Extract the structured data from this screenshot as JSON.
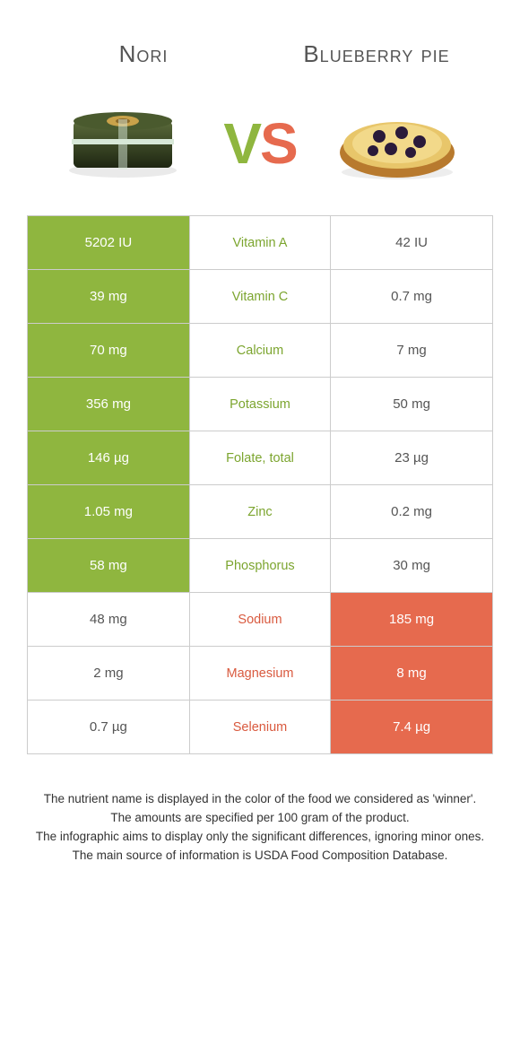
{
  "titles": {
    "left": "Nori",
    "right": "Blueberry pie"
  },
  "vs": {
    "v": "V",
    "s": "S"
  },
  "colors": {
    "left_win": "#8fb63f",
    "right_win": "#e66a4e"
  },
  "rows": [
    {
      "nutrient": "Vitamin A",
      "left": "5202 IU",
      "right": "42 IU",
      "winner": "left"
    },
    {
      "nutrient": "Vitamin C",
      "left": "39 mg",
      "right": "0.7 mg",
      "winner": "left"
    },
    {
      "nutrient": "Calcium",
      "left": "70 mg",
      "right": "7 mg",
      "winner": "left"
    },
    {
      "nutrient": "Potassium",
      "left": "356 mg",
      "right": "50 mg",
      "winner": "left"
    },
    {
      "nutrient": "Folate, total",
      "left": "146 µg",
      "right": "23 µg",
      "winner": "left"
    },
    {
      "nutrient": "Zinc",
      "left": "1.05 mg",
      "right": "0.2 mg",
      "winner": "left"
    },
    {
      "nutrient": "Phosphorus",
      "left": "58 mg",
      "right": "30 mg",
      "winner": "left"
    },
    {
      "nutrient": "Sodium",
      "left": "48 mg",
      "right": "185 mg",
      "winner": "right"
    },
    {
      "nutrient": "Magnesium",
      "left": "2 mg",
      "right": "8 mg",
      "winner": "right"
    },
    {
      "nutrient": "Selenium",
      "left": "0.7 µg",
      "right": "7.4 µg",
      "winner": "right"
    }
  ],
  "footnotes": [
    "The nutrient name is displayed in the color of the food we considered as 'winner'.",
    "The amounts are specified per 100 gram of the product.",
    "The infographic aims to display only the significant differences, ignoring minor ones.",
    "The main source of information is USDA Food Composition Database."
  ]
}
